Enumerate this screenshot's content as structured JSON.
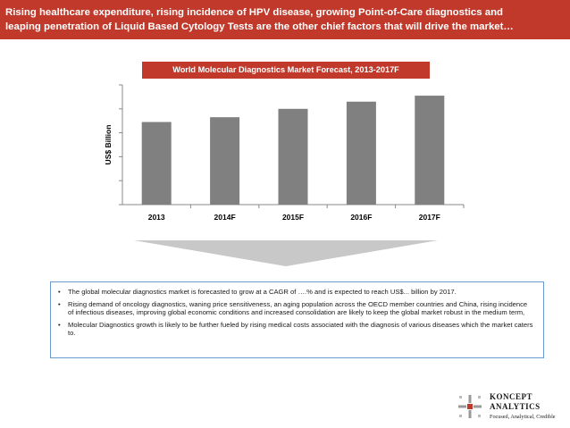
{
  "header": {
    "line1": "Rising healthcare expenditure, rising incidence of HPV disease, growing Point-of-Care diagnostics and",
    "line2": "leaping penetration of Liquid Based Cytology Tests are the other chief factors that will drive the market…"
  },
  "chart_data": {
    "type": "bar",
    "title": "World Molecular Diagnostics Market Forecast, 2013-2017F",
    "xlabel": "",
    "ylabel": "US$ Billion",
    "categories": [
      "2013",
      "2014F",
      "2015F",
      "2016F",
      "2017F"
    ],
    "values": [
      6.9,
      7.3,
      8.0,
      8.6,
      9.1
    ],
    "ylim": [
      0,
      10
    ],
    "bar_color": "#808080",
    "grid": false,
    "legend": "none"
  },
  "bullets": [
    "The global molecular diagnostics market is forecasted to grow at a CAGR of ….% and is expected to reach US$... billion by 2017.",
    "Rising demand of oncology diagnostics, waning price sensitiveness, an aging population across the OECD member countries and China, rising incidence of infectious diseases, improving global economic conditions and increased consolidation are likely to keep the global market robust in the medium term,",
    "Molecular Diagnostics growth is likely to be further fueled by rising medical costs associated with the diagnosis of various diseases which the market caters to."
  ],
  "bullet_symbol": "•",
  "logo": {
    "name_line1": "KONCEPT",
    "name_line2": "ANALYTICS",
    "tagline": "Focused, Analytical, Credible"
  },
  "colors": {
    "accent": "#c0392b",
    "arrow": "#c8c8c8",
    "box_border": "#6a9bd0"
  }
}
